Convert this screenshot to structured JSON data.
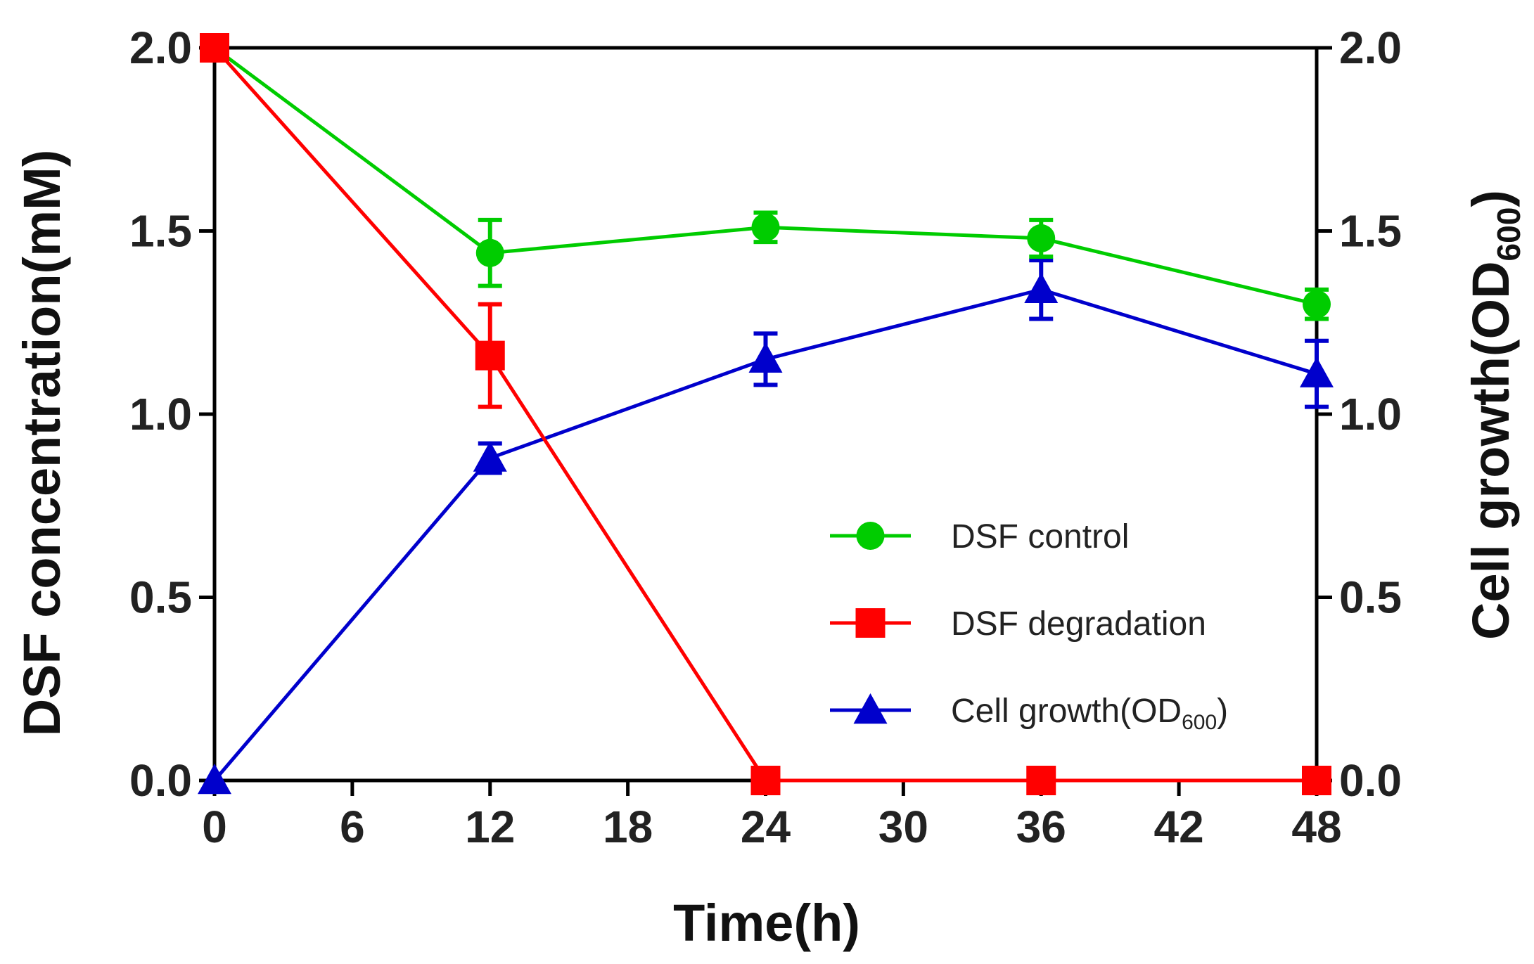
{
  "chart_data": {
    "type": "line",
    "title": "",
    "xlabel": "Time(h)",
    "ylabel_left": "DSF concentration(mM)",
    "ylabel_right": {
      "main": "Cell growth(OD",
      "sub": "600",
      "close": ")"
    },
    "xlim": [
      0,
      48
    ],
    "ylim_left": [
      0,
      2.0
    ],
    "ylim_right": [
      0,
      2.0
    ],
    "x_ticks": [
      "0",
      "6",
      "12",
      "18",
      "24",
      "30",
      "36",
      "42",
      "48"
    ],
    "y_ticks_left": [
      "0.0",
      "0.5",
      "1.0",
      "1.5",
      "2.0"
    ],
    "y_ticks_right": [
      "0.0",
      "0.5",
      "1.0",
      "1.5",
      "2.0"
    ],
    "grid": false,
    "legend_position": "lower-right",
    "series": [
      {
        "name": "DSF control",
        "legend_main": "DSF control",
        "legend_sub": "",
        "legend_close": "",
        "color": "#00cc00",
        "marker": "circle",
        "axis": "left",
        "x": [
          0,
          12,
          24,
          36,
          48
        ],
        "y": [
          2.0,
          1.44,
          1.51,
          1.48,
          1.3
        ],
        "err": [
          0.0,
          0.09,
          0.04,
          0.05,
          0.04
        ]
      },
      {
        "name": "DSF degradation",
        "legend_main": "DSF degradation",
        "legend_sub": "",
        "legend_close": "",
        "color": "#ff0000",
        "marker": "square",
        "axis": "left",
        "x": [
          0,
          12,
          24,
          36,
          48
        ],
        "y": [
          2.0,
          1.16,
          0.0,
          0.0,
          0.0
        ],
        "err": [
          0.0,
          0.14,
          0.0,
          0.0,
          0.0
        ]
      },
      {
        "name": "Cell growth(OD600)",
        "legend_main": "Cell growth(OD",
        "legend_sub": "600",
        "legend_close": ")",
        "color": "#0000cc",
        "marker": "triangle",
        "axis": "right",
        "x": [
          0,
          12,
          24,
          36,
          48
        ],
        "y": [
          0.0,
          0.88,
          1.15,
          1.34,
          1.11
        ],
        "err": [
          0.0,
          0.04,
          0.07,
          0.08,
          0.09
        ]
      }
    ]
  }
}
